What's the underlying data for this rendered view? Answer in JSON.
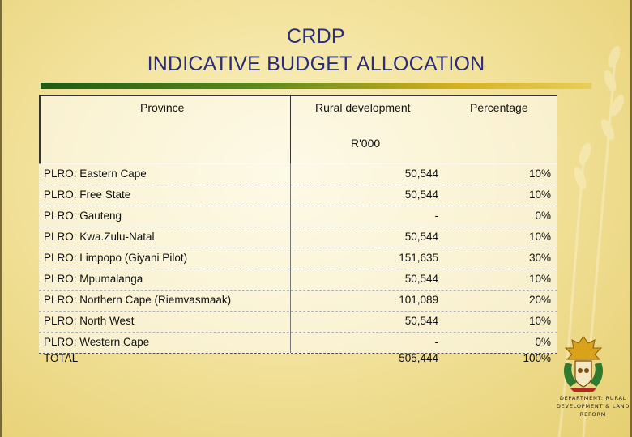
{
  "slide": {
    "title_line1": "CRDP",
    "title_line2": "INDICATIVE BUDGET ALLOCATION"
  },
  "table": {
    "headers": {
      "province": "Province",
      "rural": "Rural development",
      "percentage": "Percentage",
      "unit": "R'000"
    },
    "rows": [
      {
        "name": "PLRO: Eastern Cape",
        "amount": "50,544",
        "pct": "10%"
      },
      {
        "name": "PLRO: Free State",
        "amount": "50,544",
        "pct": "10%"
      },
      {
        "name": "PLRO: Gauteng",
        "amount": "-",
        "pct": "0%"
      },
      {
        "name": "PLRO: Kwa.Zulu-Natal",
        "amount": "50,544",
        "pct": "10%"
      },
      {
        "name": "PLRO: Limpopo  (Giyani Pilot)",
        "amount": "151,635",
        "pct": "30%"
      },
      {
        "name": "PLRO: Mpumalanga",
        "amount": "50,544",
        "pct": "10%"
      },
      {
        "name": "PLRO: Northern Cape (Riemvasmaak)",
        "amount": "101,089",
        "pct": "20%"
      },
      {
        "name": "PLRO: North West",
        "amount": "50,544",
        "pct": "10%"
      },
      {
        "name": "PLRO: Western Cape",
        "amount": "-",
        "pct": "0%"
      }
    ],
    "total": {
      "name": "TOTAL",
      "amount": "505,444",
      "pct": "100%"
    }
  },
  "footer": {
    "logo_icon": "coat-of-arms-icon",
    "department_line1": "DEPARTMENT: RURAL",
    "department_line2": "DEVELOPMENT & LAND",
    "department_line3": "REFORM"
  },
  "colors": {
    "title": "#2a2d78",
    "rule_start": "#1f5a14",
    "rule_end": "#e8cf5a",
    "background": "#f3e39e"
  }
}
